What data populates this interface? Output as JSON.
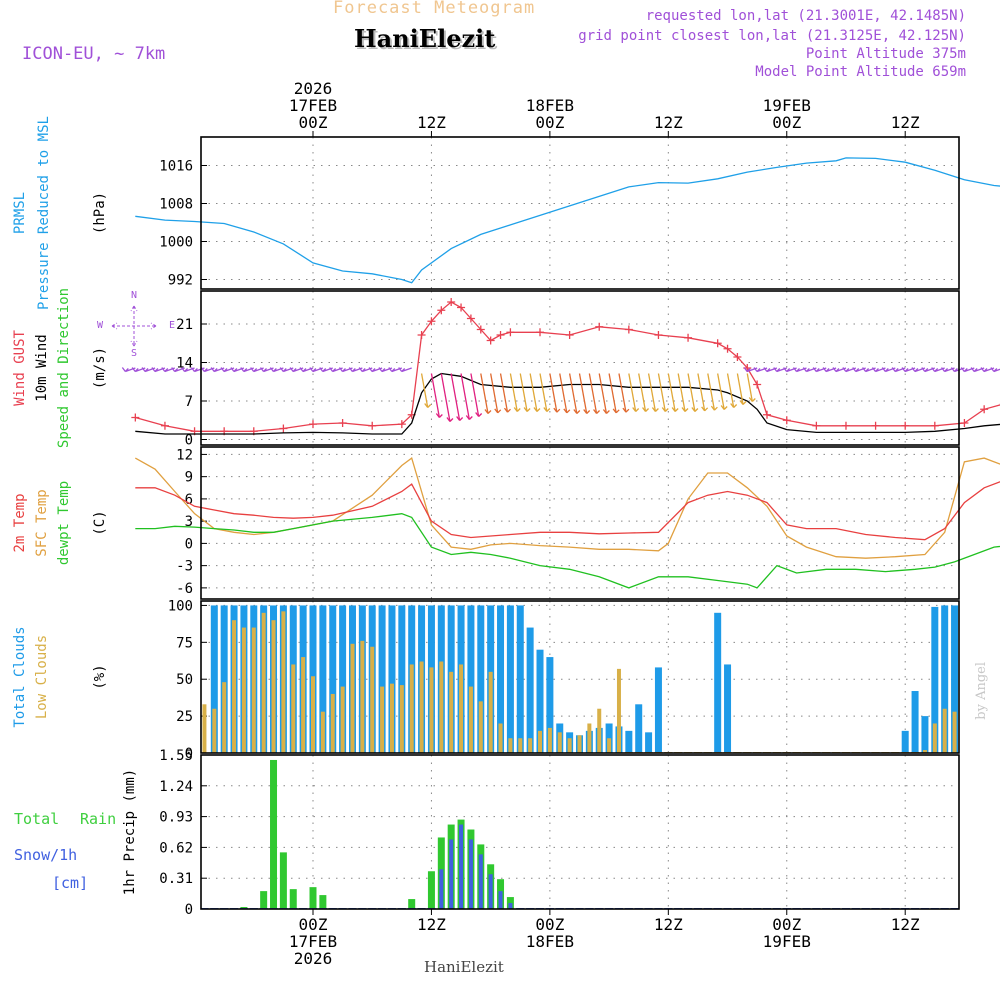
{
  "header": {
    "title": "Forecast Meteogram",
    "station": "HaniElezit",
    "model": "ICON-EU, ~ 7km",
    "info_lines": [
      "requested lon,lat (21.3001E, 42.1485N)",
      "grid point closest lon,lat (21.3125E, 42.125N)",
      "Point Altitude 375m",
      "Model Point Altitude 659m"
    ],
    "footer": "HaniElezit",
    "credit": "by Angel"
  },
  "time_axis": {
    "top": [
      {
        "h": 18,
        "lines": [
          "2026",
          "17FEB",
          "00Z"
        ]
      },
      {
        "h": 30,
        "lines": [
          "12Z"
        ]
      },
      {
        "h": 42,
        "lines": [
          "18FEB",
          "00Z"
        ]
      },
      {
        "h": 54,
        "lines": [
          "12Z"
        ]
      },
      {
        "h": 66,
        "lines": [
          "19FEB",
          "00Z"
        ]
      },
      {
        "h": 78,
        "lines": [
          "12Z"
        ]
      }
    ],
    "bottom": [
      {
        "h": 18,
        "lines": [
          "00Z",
          "17FEB",
          "2026"
        ]
      },
      {
        "h": 30,
        "lines": [
          "12Z"
        ]
      },
      {
        "h": 42,
        "lines": [
          "00Z",
          "18FEB"
        ]
      },
      {
        "h": 54,
        "lines": [
          "12Z"
        ]
      },
      {
        "h": 66,
        "lines": [
          "00Z",
          "19FEB"
        ]
      },
      {
        "h": 78,
        "lines": [
          "12Z"
        ]
      }
    ]
  },
  "colors": {
    "pressure": "#1fa0e8",
    "gust": "#e84050",
    "wind": "#000000",
    "sfc": "#e0a040",
    "t2m": "#e84040",
    "dew": "#20c020",
    "total_clouds": "#1e9be8",
    "low_clouds": "#d8b048",
    "rain": "#30c830",
    "snow": "#4060e0",
    "purple": "#a050d8"
  },
  "chart_data": [
    {
      "type": "line",
      "title": "PRMSL",
      "ylabel": [
        "PRMSL",
        "Pressure Reduced to MSL",
        "(hPa)"
      ],
      "ylim": [
        990,
        1022
      ],
      "yticks": [
        992,
        1000,
        1008,
        1016
      ],
      "series": [
        {
          "name": "PRMSL",
          "x": [
            0,
            3,
            6,
            9,
            12,
            15,
            18,
            21,
            24,
            27,
            28,
            29,
            32,
            35,
            38,
            41,
            44,
            47,
            50,
            53,
            56,
            59,
            62,
            65,
            68,
            71,
            72,
            75,
            78,
            81,
            84,
            87,
            88,
            90,
            92
          ],
          "y": [
            1005.3,
            1004.5,
            1004.2,
            1003.8,
            1002,
            999.5,
            995.5,
            993.8,
            993.2,
            992,
            991.3,
            994,
            998.5,
            1001.5,
            1003.5,
            1005.5,
            1007.5,
            1009.5,
            1011.5,
            1012.4,
            1012.3,
            1013.2,
            1014.6,
            1015.6,
            1016.5,
            1017,
            1017.6,
            1017.5,
            1016.7,
            1015,
            1013,
            1011.8,
            1011.6,
            1012,
            1012.4
          ]
        }
      ]
    },
    {
      "type": "line",
      "title": "Wind",
      "ylabel": [
        "Wind GUST",
        "10m Wind",
        "Speed and Direction",
        "(m/s)"
      ],
      "compass": [
        "N",
        "W",
        "E",
        "S"
      ],
      "ylim": [
        -1,
        27
      ],
      "yticks": [
        0,
        7,
        14,
        21
      ],
      "series": [
        {
          "name": "Wind GUST",
          "x": [
            0,
            3,
            6,
            9,
            12,
            15,
            18,
            21,
            24,
            27,
            28,
            29,
            30,
            31,
            32,
            33,
            34,
            35,
            36,
            37,
            38,
            41,
            44,
            47,
            50,
            53,
            56,
            59,
            60,
            61,
            62,
            63,
            64,
            66,
            69,
            72,
            75,
            78,
            81,
            84,
            86,
            88,
            90,
            92
          ],
          "y": [
            4,
            2.5,
            1.5,
            1.5,
            1.5,
            2,
            2.8,
            3,
            2.5,
            2.8,
            4.5,
            19,
            21.5,
            23.5,
            25,
            24,
            22,
            20,
            18,
            19,
            19.5,
            19.5,
            19,
            20.5,
            20,
            19,
            18.5,
            17.5,
            16.5,
            15,
            13,
            10,
            4.5,
            3.5,
            2.5,
            2.5,
            2.5,
            2.5,
            2.5,
            3,
            5.5,
            6.5,
            5,
            4
          ]
        },
        {
          "name": "10m Wind",
          "x": [
            0,
            3,
            6,
            9,
            12,
            15,
            18,
            21,
            24,
            27,
            28,
            29,
            30,
            31,
            33,
            35,
            38,
            41,
            44,
            47,
            50,
            53,
            56,
            59,
            60,
            62,
            63,
            64,
            66,
            69,
            72,
            75,
            78,
            81,
            84,
            86,
            88,
            90,
            92
          ],
          "y": [
            1.5,
            1,
            1,
            1,
            1,
            1.2,
            1.3,
            1.2,
            1,
            1,
            3,
            8.5,
            11,
            12,
            11.5,
            10,
            9.5,
            9.5,
            10,
            10,
            9.5,
            9.5,
            9.5,
            9,
            8.5,
            7,
            5.5,
            3,
            1.8,
            1.3,
            1.3,
            1.3,
            1.3,
            1.5,
            2,
            2.5,
            2.8,
            2.2,
            1.8
          ]
        }
      ],
      "barbs": {
        "x_start": 0,
        "x_step": 1,
        "speed_source": "10m Wind"
      }
    },
    {
      "type": "line",
      "title": "Temperature",
      "ylabel": [
        "2m Temp",
        "SFC Temp",
        "dewpt Temp",
        "(C)"
      ],
      "ylim": [
        -7.5,
        13
      ],
      "yticks": [
        -6,
        -3,
        0,
        3,
        6,
        9,
        12
      ],
      "series": [
        {
          "name": "SFC Temp",
          "x": [
            0,
            2,
            4,
            6,
            8,
            10,
            12,
            14,
            16,
            18,
            20,
            24,
            27,
            28,
            30,
            32,
            34,
            36,
            38,
            41,
            44,
            47,
            50,
            53,
            54,
            56,
            58,
            60,
            62,
            64,
            66,
            68,
            71,
            74,
            77,
            80,
            82,
            84,
            86,
            88,
            90,
            92
          ],
          "y": [
            11.5,
            10,
            7,
            4,
            2,
            1.5,
            1.2,
            1.5,
            2,
            2.5,
            3,
            6.5,
            10.5,
            11.5,
            2.5,
            -0.5,
            -0.8,
            -0.2,
            0,
            -0.3,
            -0.5,
            -0.8,
            -0.8,
            -1,
            0,
            6,
            9.5,
            9.5,
            7.5,
            5,
            1,
            -0.5,
            -1.8,
            -2,
            -1.8,
            -1.5,
            1.5,
            11,
            11.5,
            10.5,
            8,
            4.5
          ]
        },
        {
          "name": "2m Temp",
          "x": [
            0,
            2,
            4,
            6,
            8,
            10,
            12,
            14,
            16,
            18,
            20,
            24,
            27,
            28,
            30,
            32,
            34,
            36,
            38,
            41,
            44,
            47,
            50,
            53,
            56,
            58,
            60,
            62,
            64,
            66,
            68,
            71,
            74,
            77,
            80,
            82,
            84,
            86,
            88,
            90,
            92
          ],
          "y": [
            7.5,
            7.5,
            6.5,
            5,
            4.5,
            4,
            3.8,
            3.5,
            3.4,
            3.5,
            3.8,
            5,
            7,
            8,
            3,
            1.2,
            0.8,
            1,
            1.2,
            1.5,
            1.5,
            1.3,
            1.4,
            1.5,
            5.5,
            6.5,
            7,
            6.5,
            5.5,
            2.5,
            2,
            2,
            1.2,
            0.8,
            0.5,
            2,
            5.5,
            7.5,
            8.5,
            8.7,
            7
          ]
        },
        {
          "name": "dewpt Temp",
          "x": [
            0,
            2,
            4,
            6,
            8,
            10,
            12,
            14,
            16,
            18,
            20,
            24,
            27,
            28,
            30,
            32,
            34,
            36,
            38,
            41,
            44,
            47,
            50,
            53,
            56,
            59,
            62,
            63,
            65,
            67,
            70,
            73,
            76,
            79,
            81,
            83,
            85,
            87,
            89,
            91,
            92
          ],
          "y": [
            2,
            2,
            2.3,
            2.2,
            2,
            1.8,
            1.5,
            1.5,
            2,
            2.5,
            3,
            3.5,
            4,
            3.5,
            -0.5,
            -1.5,
            -1.2,
            -1.5,
            -2,
            -3,
            -3.5,
            -4.5,
            -6,
            -4.5,
            -4.5,
            -5,
            -5.5,
            -6,
            -3,
            -4,
            -3.5,
            -3.5,
            -3.8,
            -3.5,
            -3.2,
            -2.5,
            -1.5,
            -0.5,
            -0.2,
            0,
            0.5
          ]
        }
      ]
    },
    {
      "type": "bar",
      "title": "Clouds",
      "ylabel": [
        "Total Clouds",
        "Low Clouds",
        "(%)"
      ],
      "ylim": [
        0,
        103
      ],
      "yticks": [
        0,
        25,
        50,
        75,
        100
      ],
      "x_start": 0,
      "series": [
        {
          "name": "Total Clouds",
          "values": [
            78,
            99,
            100,
            95,
            100,
            100,
            96,
            88,
            100,
            100,
            100,
            100,
            100,
            100,
            100,
            100,
            100,
            100,
            100,
            100,
            100,
            100,
            100,
            100,
            100,
            100,
            100,
            100,
            100,
            100,
            100,
            100,
            100,
            100,
            100,
            100,
            100,
            100,
            100,
            100,
            85,
            70,
            65,
            20,
            14,
            12,
            15,
            17,
            20,
            18,
            15,
            33,
            14,
            58,
            0,
            0,
            0,
            0,
            0,
            95,
            60,
            0,
            0,
            0,
            0,
            0,
            0,
            0,
            0,
            0,
            0,
            0,
            0,
            0,
            0,
            0,
            0,
            0,
            15,
            42,
            25,
            99,
            100,
            100,
            100,
            100,
            100,
            98,
            80,
            80
          ]
        },
        {
          "name": "Low Clouds",
          "values": [
            60,
            48,
            38,
            15,
            17,
            15,
            28,
            33,
            30,
            48,
            90,
            85,
            85,
            95,
            90,
            96,
            60,
            65,
            52,
            28,
            40,
            45,
            74,
            76,
            72,
            45,
            47,
            46,
            60,
            62,
            58,
            62,
            55,
            60,
            45,
            35,
            55,
            20,
            10,
            10,
            10,
            15,
            17,
            14,
            10,
            12,
            20,
            30,
            10,
            57,
            0,
            0,
            0,
            0,
            0,
            0,
            0,
            0,
            0,
            0,
            0,
            0,
            0,
            0,
            0,
            0,
            0,
            0,
            0,
            0,
            0,
            0,
            0,
            0,
            0,
            0,
            0,
            0,
            0,
            0,
            2,
            20,
            30,
            28,
            10,
            5,
            45,
            58,
            55,
            60
          ]
        }
      ]
    },
    {
      "type": "bar",
      "title": "Precipitation",
      "ylabel": [
        "1hr Precip (mm)"
      ],
      "legend": [
        "Total",
        "Rain",
        "Snow/1h",
        "[cm]"
      ],
      "ylim": [
        0,
        1.55
      ],
      "yticks": [
        0,
        0.31,
        0.62,
        0.93,
        1.24,
        1.55
      ],
      "x_start": 0,
      "series": [
        {
          "name": "Total Rain",
          "values": [
            0,
            0,
            0,
            0,
            0,
            0,
            0,
            0,
            0,
            0,
            0,
            0.02,
            0,
            0.18,
            1.5,
            0.57,
            0.2,
            0,
            0.22,
            0.14,
            0,
            0,
            0,
            0,
            0,
            0,
            0,
            0,
            0.1,
            0,
            0.38,
            0.72,
            0.85,
            0.9,
            0.8,
            0.65,
            0.45,
            0.3,
            0.12,
            0,
            0,
            0,
            0,
            0,
            0,
            0,
            0,
            0,
            0,
            0,
            0,
            0,
            0,
            0,
            0,
            0,
            0,
            0,
            0,
            0,
            0,
            0,
            0,
            0,
            0,
            0,
            0,
            0,
            0,
            0,
            0,
            0,
            0,
            0,
            0,
            0,
            0,
            0,
            0,
            0,
            0,
            0,
            0,
            0,
            0,
            0,
            0,
            0,
            0,
            0
          ]
        },
        {
          "name": "Snow/1h",
          "values": [
            0,
            0,
            0,
            0,
            0,
            0,
            0,
            0,
            0,
            0,
            0,
            0,
            0,
            0,
            0,
            0,
            0,
            0,
            0,
            0,
            0,
            0,
            0,
            0,
            0,
            0,
            0,
            0,
            0,
            0,
            0,
            0.4,
            0.7,
            0.85,
            0.7,
            0.55,
            0.35,
            0.18,
            0.06,
            0,
            0,
            0,
            0,
            0,
            0,
            0,
            0,
            0,
            0,
            0,
            0,
            0,
            0,
            0,
            0,
            0,
            0,
            0,
            0,
            0,
            0,
            0,
            0,
            0,
            0,
            0,
            0,
            0,
            0,
            0,
            0,
            0,
            0,
            0,
            0,
            0,
            0,
            0,
            0,
            0,
            0,
            0,
            0,
            0,
            0,
            0,
            0,
            0,
            0,
            0
          ]
        }
      ]
    }
  ]
}
